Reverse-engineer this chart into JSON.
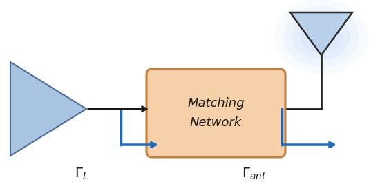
{
  "bg_color": "#ffffff",
  "amp_color": "#a8c4e0",
  "amp_edge_color": "#4a6a9a",
  "box_facecolor": "#f5d0a9",
  "box_edgecolor": "#c08040",
  "arrow_color": "#1a1a1a",
  "blue_color": "#1a6abf",
  "antenna_fill": "#b8d0ea",
  "antenna_edge": "#2a2a2a",
  "antenna_glow": "#c0d8f8",
  "box_label_line1": "Matching",
  "box_label_line2": "Network"
}
